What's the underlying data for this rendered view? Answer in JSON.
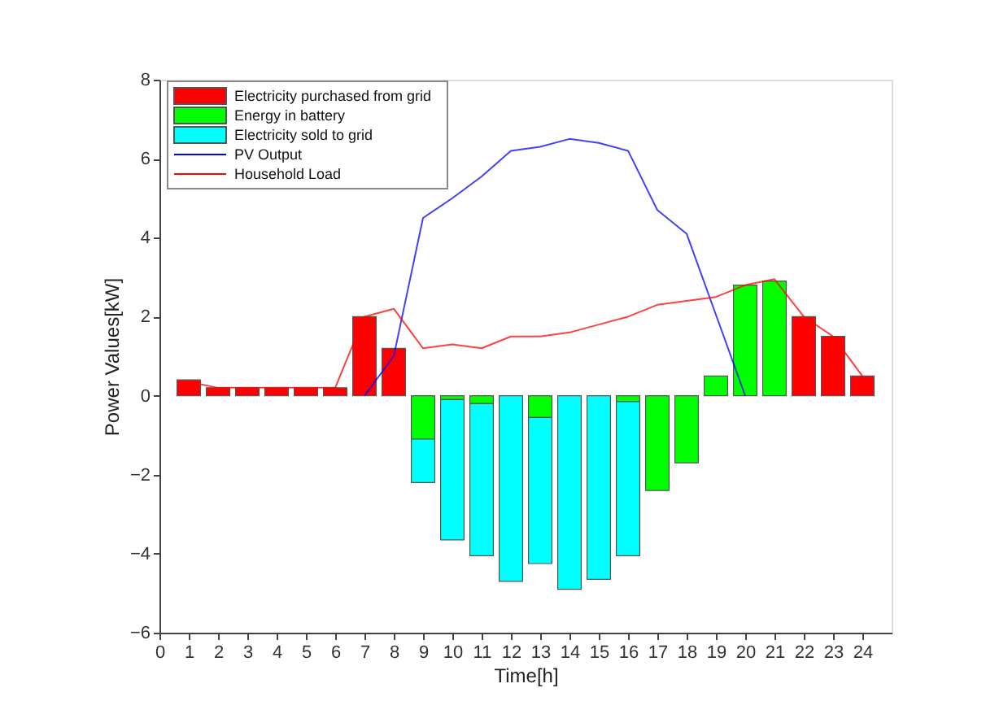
{
  "chart_data": {
    "type": "bar",
    "stacked": true,
    "xlabel": "Time[h]",
    "ylabel": "Power Values[kW]",
    "x": [
      1,
      2,
      3,
      4,
      5,
      6,
      7,
      8,
      9,
      10,
      11,
      12,
      13,
      14,
      15,
      16,
      17,
      18,
      19,
      20,
      21,
      22,
      23,
      24
    ],
    "xlim": [
      0,
      25
    ],
    "xticks": [
      0,
      1,
      2,
      3,
      4,
      5,
      6,
      7,
      8,
      9,
      10,
      11,
      12,
      13,
      14,
      15,
      16,
      17,
      18,
      19,
      20,
      21,
      22,
      23,
      24
    ],
    "ylim": [
      -6,
      8
    ],
    "yticks": [
      -6,
      -4,
      -2,
      0,
      2,
      4,
      6,
      8
    ],
    "grid": false,
    "legend": "top left",
    "series": [
      {
        "name": "Electricity purchased from grid",
        "color": "#ff0000",
        "values": [
          0.4,
          0.2,
          0.2,
          0.2,
          0.2,
          0.2,
          2.0,
          1.2,
          0,
          0,
          0,
          0,
          0,
          0,
          0,
          0,
          0,
          0,
          0,
          0,
          0,
          2.0,
          1.5,
          0.5
        ]
      },
      {
        "name": "Energy in battery",
        "color": "#00ff00",
        "values": [
          0,
          0,
          0,
          0,
          0,
          0,
          0,
          0,
          -1.1,
          -0.1,
          -0.2,
          0,
          -0.55,
          0,
          0,
          -0.15,
          -2.4,
          -1.7,
          0.5,
          2.8,
          2.9,
          0,
          0,
          0
        ]
      },
      {
        "name": "Electricity sold to grid",
        "color": "#00ffff",
        "values": [
          0,
          0,
          0,
          0,
          0,
          0,
          0,
          0,
          -1.1,
          -3.55,
          -3.85,
          -4.7,
          -3.7,
          -4.9,
          -4.65,
          -3.9,
          0,
          0,
          0,
          0,
          0,
          0,
          0,
          0
        ]
      },
      {
        "name": "PV Output",
        "type": "line",
        "color": "#0000ff",
        "x": [
          7,
          8,
          9,
          10,
          11,
          12,
          13,
          14,
          15,
          16,
          17,
          18,
          19,
          20
        ],
        "values": [
          0,
          1.0,
          4.5,
          5.0,
          5.55,
          6.2,
          6.3,
          6.5,
          6.4,
          6.2,
          4.7,
          4.1,
          2.05,
          0
        ]
      },
      {
        "name": "Household Load",
        "type": "line",
        "color": "#ff0000",
        "values": [
          0.35,
          0.2,
          0.2,
          0.2,
          0.2,
          0.2,
          2.0,
          2.2,
          1.2,
          1.3,
          1.2,
          1.5,
          1.5,
          1.6,
          1.8,
          2.0,
          2.3,
          2.4,
          2.5,
          2.8,
          2.95,
          2.0,
          1.5,
          0.5
        ]
      }
    ]
  }
}
